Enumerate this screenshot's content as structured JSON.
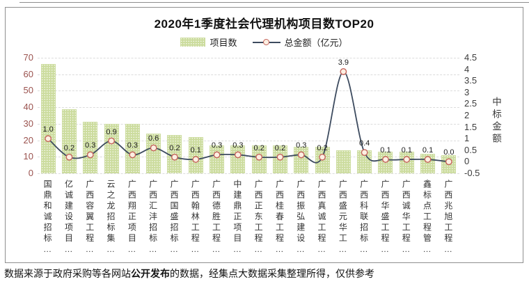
{
  "legend": {
    "bar_label": "项目数",
    "line_label": "总金额（亿元）"
  },
  "caption": {
    "prefix": "数据来源于政府采购等各网站",
    "bold": "公开发布",
    "suffix": "的数据，经集点大数据采集整理所得，仅供参考"
  },
  "colors": {
    "bar_fill": "#ccdc9e",
    "line": "#3d4b5f",
    "marker_fill": "#fcefe2",
    "marker_stroke": "#c4635a",
    "left_axis_text": "#9a524e",
    "grid": "#dcdcdc"
  },
  "chart_data": {
    "type": "bar",
    "title": "2020年1季度社会代理机构项目数TOP20",
    "categories": [
      "国鼎和诚招标…",
      "亿诚建设项目…",
      "广西容翼工程…",
      "云之龙招标集…",
      "广西翔正项目…",
      "广西汇沣招标…",
      "广西国盛招标…",
      "广西翰林工程…",
      "广西德胜工程…",
      "中建鼎正项目…",
      "广西正东工程…",
      "广西桂春工程…",
      "广西振弘建设…",
      "广西真诚工程…",
      "广西盛元华工…",
      "广西科联招标…",
      "广西华盛工程…",
      "广西诚华工程…",
      "鑫标点工程管…",
      "广西兆旭工程…"
    ],
    "series": [
      {
        "name": "项目数",
        "type": "bar",
        "axis": "left",
        "values": [
          66,
          39,
          31,
          30,
          30,
          24,
          23,
          22,
          17,
          17,
          17,
          17,
          16,
          16,
          14,
          14,
          13,
          13,
          12,
          11
        ]
      },
      {
        "name": "总金额（亿元）",
        "type": "line",
        "axis": "right",
        "values": [
          1.0,
          0.2,
          0.3,
          0.9,
          0.3,
          0.6,
          0.2,
          0.1,
          0.3,
          0.3,
          0.2,
          0.2,
          0.3,
          0.2,
          3.9,
          0.4,
          0.1,
          0.1,
          0.1,
          0.0
        ],
        "labels": [
          "1.0",
          "0.2",
          "0.3",
          "0.9",
          "0.3",
          "0.6",
          "0.2",
          "0.1",
          "0.3",
          "0.3",
          "0.2",
          "0.2",
          "0.3",
          "0.2",
          "3.9",
          "0.4",
          "0.1",
          "0.1",
          "0.1",
          "0.0"
        ]
      }
    ],
    "left_axis": {
      "min": 0,
      "max": 70,
      "step": 10,
      "ticks": [
        "0",
        "10",
        "20",
        "30",
        "40",
        "50",
        "60",
        "70"
      ]
    },
    "right_axis": {
      "min": -0.5,
      "max": 4.5,
      "step": 0.5,
      "ticks": [
        "-0.5",
        "0",
        "0.5",
        "1",
        "1.5",
        "2",
        "2.5",
        "3",
        "3.5",
        "4",
        "4.5"
      ],
      "title": "中标金额"
    },
    "grid": true,
    "legend_position": "top"
  }
}
